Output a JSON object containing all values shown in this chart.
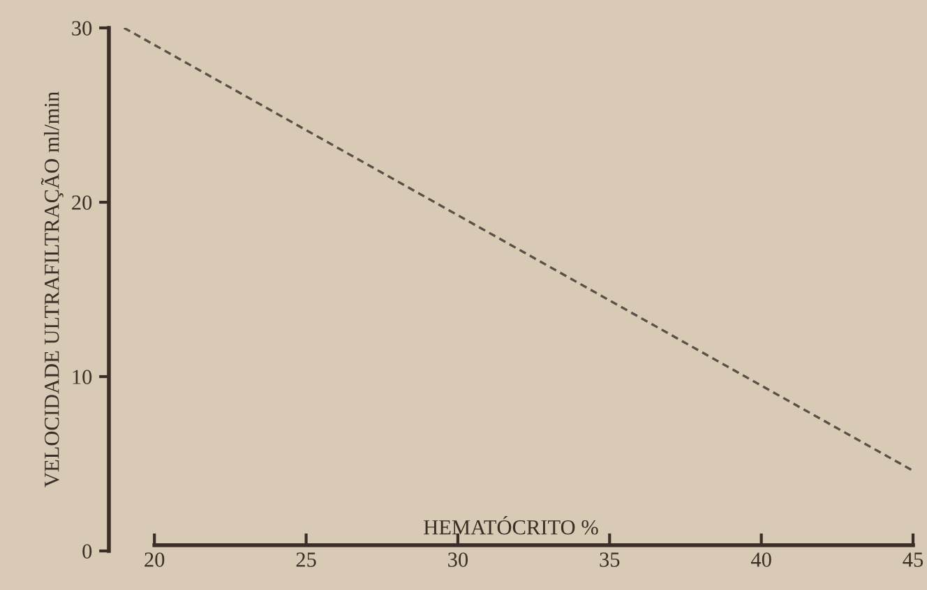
{
  "chart_data": {
    "type": "line",
    "xlabel": "HEMATÓCRITO %",
    "ylabel": "VELOCIDADE ULTRAFILTRAÇÃO ml/min",
    "series": [
      {
        "color": "#5a5048",
        "x": [
          19,
          45
        ],
        "values": [
          30,
          4.6
        ]
      }
    ],
    "line_style": "dashed",
    "marker": "none",
    "grid": false,
    "legend": false,
    "xlim": [
      18.5,
      45
    ],
    "xticks": [
      20,
      25,
      30,
      35,
      40,
      45
    ],
    "ylim": [
      0,
      30
    ],
    "yticks": [
      0,
      10,
      20,
      30
    ]
  }
}
